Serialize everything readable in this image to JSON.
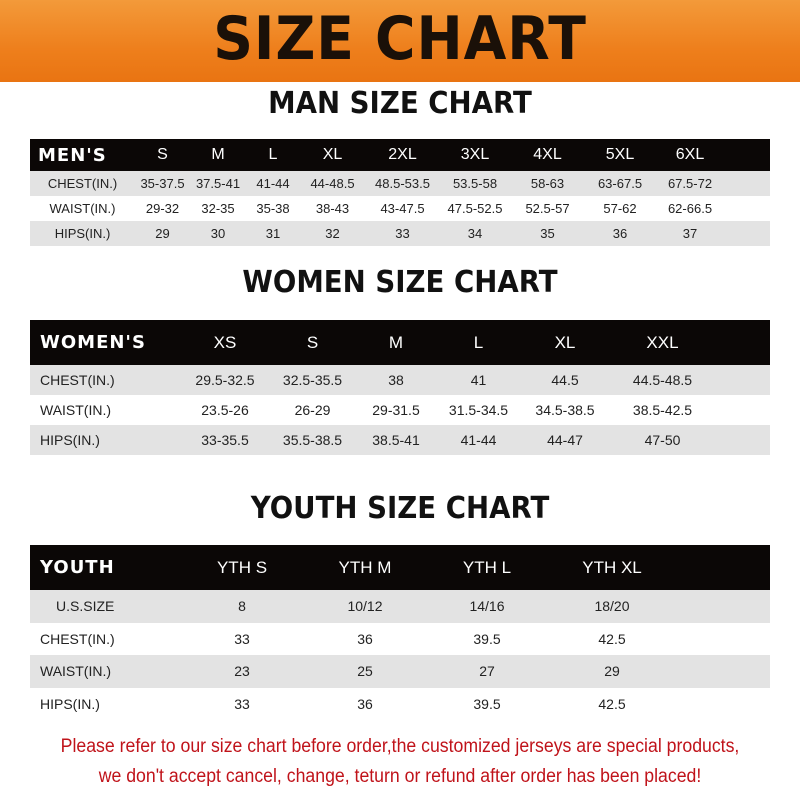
{
  "banner": {
    "title": "SIZE CHART",
    "color": "#ee7f1c"
  },
  "men": {
    "title": "MAN SIZE CHART",
    "header": [
      "MEN'S",
      "S",
      "M",
      "L",
      "XL",
      "2XL",
      "3XL",
      "4XL",
      "5XL",
      "6XL"
    ],
    "rows": [
      [
        "CHEST(IN.)",
        "35-37.5",
        "37.5-41",
        "41-44",
        "44-48.5",
        "48.5-53.5",
        "53.5-58",
        "58-63",
        "63-67.5",
        "67.5-72"
      ],
      [
        "WAIST(IN.)",
        "29-32",
        "32-35",
        "35-38",
        "38-43",
        "43-47.5",
        "47.5-52.5",
        "52.5-57",
        "57-62",
        "62-66.5"
      ],
      [
        "HIPS(IN.)",
        "29",
        "30",
        "31",
        "32",
        "33",
        "34",
        "35",
        "36",
        "37"
      ]
    ]
  },
  "women": {
    "title": "WOMEN SIZE CHART",
    "header": [
      "WOMEN'S",
      "XS",
      "S",
      "M",
      "L",
      "XL",
      "XXL"
    ],
    "rows": [
      [
        "CHEST(IN.)",
        "29.5-32.5",
        "32.5-35.5",
        "38",
        "41",
        "44.5",
        "44.5-48.5"
      ],
      [
        "WAIST(IN.)",
        "23.5-26",
        "26-29",
        "29-31.5",
        "31.5-34.5",
        "34.5-38.5",
        "38.5-42.5"
      ],
      [
        "HIPS(IN.)",
        "33-35.5",
        "35.5-38.5",
        "38.5-41",
        "41-44",
        "44-47",
        "47-50"
      ]
    ]
  },
  "youth": {
    "title": "YOUTH SIZE CHART",
    "header": [
      "YOUTH",
      "YTH S",
      "YTH M",
      "YTH L",
      "YTH XL"
    ],
    "rows": [
      [
        "U.S.SIZE",
        "8",
        "10/12",
        "14/16",
        "18/20"
      ],
      [
        "CHEST(IN.)",
        "33",
        "36",
        "39.5",
        "42.5"
      ],
      [
        "WAIST(IN.)",
        "23",
        "25",
        "27",
        "29"
      ],
      [
        "HIPS(IN.)",
        "33",
        "36",
        "39.5",
        "42.5"
      ]
    ]
  },
  "notice": {
    "line1": "Please refer to our size chart before order,the customized jerseys are special products,",
    "line2": "we don't accept cancel, change, teturn or refund after order has been placed!",
    "color": "#c0131a"
  }
}
